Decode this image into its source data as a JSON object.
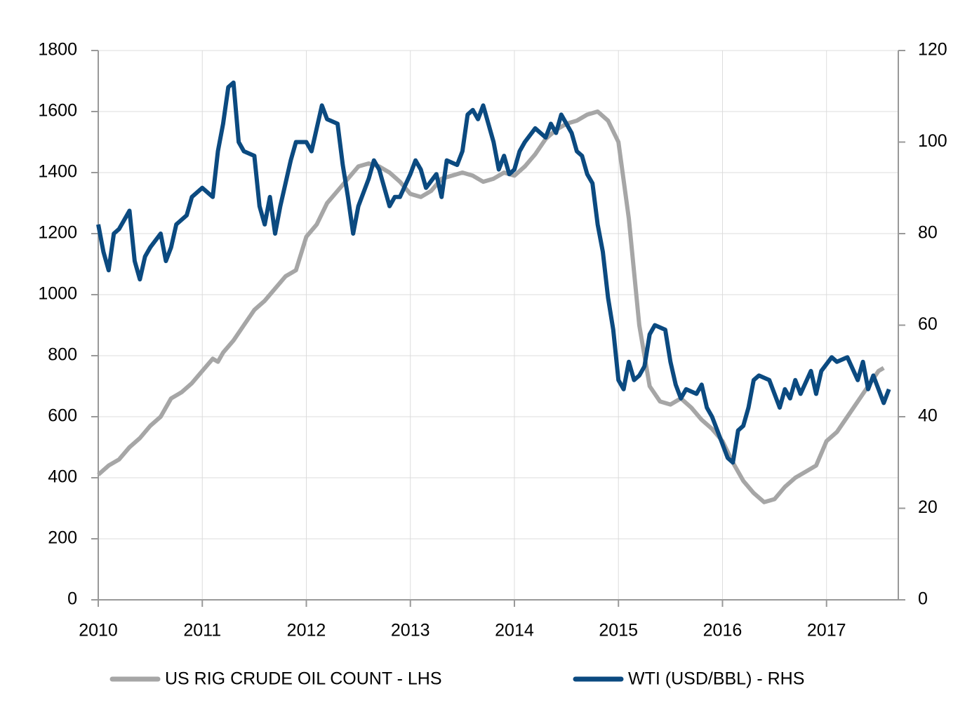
{
  "chart_data": {
    "type": "line",
    "xlim": [
      2010,
      2017.69
    ],
    "xticks": [
      2010,
      2011,
      2012,
      2013,
      2014,
      2015,
      2016,
      2017
    ],
    "ylim": [
      0,
      1800
    ],
    "yticks": [
      0,
      200,
      400,
      600,
      800,
      1000,
      1200,
      1400,
      1600,
      1800
    ],
    "y2lim": [
      0,
      120
    ],
    "y2ticks": [
      0,
      20,
      40,
      60,
      80,
      100,
      120
    ],
    "grid": true,
    "legend": "bottom",
    "series": [
      {
        "name": "US RIG CRUDE OIL COUNT - LHS",
        "color": "#a6a6a6",
        "axis": "y",
        "x": [
          2010.0,
          2010.1,
          2010.2,
          2010.3,
          2010.4,
          2010.5,
          2010.6,
          2010.7,
          2010.8,
          2010.9,
          2011.0,
          2011.1,
          2011.15,
          2011.2,
          2011.3,
          2011.4,
          2011.5,
          2011.6,
          2011.7,
          2011.8,
          2011.9,
          2012.0,
          2012.1,
          2012.2,
          2012.3,
          2012.4,
          2012.5,
          2012.6,
          2012.7,
          2012.8,
          2012.9,
          2013.0,
          2013.1,
          2013.2,
          2013.3,
          2013.4,
          2013.5,
          2013.6,
          2013.7,
          2013.8,
          2013.9,
          2014.0,
          2014.1,
          2014.2,
          2014.3,
          2014.4,
          2014.5,
          2014.6,
          2014.7,
          2014.8,
          2014.9,
          2015.0,
          2015.1,
          2015.2,
          2015.3,
          2015.4,
          2015.5,
          2015.6,
          2015.7,
          2015.8,
          2015.9,
          2016.0,
          2016.1,
          2016.2,
          2016.3,
          2016.4,
          2016.5,
          2016.6,
          2016.7,
          2016.8,
          2016.9,
          2017.0,
          2017.1,
          2017.2,
          2017.3,
          2017.4,
          2017.5,
          2017.55
        ],
        "values": [
          410,
          440,
          460,
          500,
          530,
          570,
          600,
          660,
          680,
          710,
          750,
          790,
          780,
          810,
          850,
          900,
          950,
          980,
          1020,
          1060,
          1080,
          1190,
          1230,
          1300,
          1340,
          1380,
          1420,
          1430,
          1420,
          1400,
          1370,
          1330,
          1320,
          1340,
          1380,
          1390,
          1400,
          1390,
          1370,
          1380,
          1400,
          1390,
          1420,
          1460,
          1510,
          1540,
          1560,
          1570,
          1590,
          1600,
          1570,
          1500,
          1250,
          900,
          700,
          650,
          640,
          660,
          630,
          590,
          560,
          520,
          450,
          390,
          350,
          320,
          330,
          370,
          400,
          420,
          440,
          520,
          550,
          600,
          650,
          700,
          750,
          760
        ]
      },
      {
        "name": "WTI (USD/BBL) - RHS",
        "color": "#0b4a80",
        "axis": "y2",
        "x": [
          2010.0,
          2010.05,
          2010.1,
          2010.15,
          2010.2,
          2010.25,
          2010.3,
          2010.35,
          2010.4,
          2010.45,
          2010.5,
          2010.6,
          2010.65,
          2010.7,
          2010.75,
          2010.85,
          2010.9,
          2011.0,
          2011.1,
          2011.15,
          2011.2,
          2011.25,
          2011.3,
          2011.35,
          2011.4,
          2011.5,
          2011.55,
          2011.6,
          2011.65,
          2011.7,
          2011.75,
          2011.85,
          2011.9,
          2012.0,
          2012.05,
          2012.1,
          2012.15,
          2012.2,
          2012.3,
          2012.35,
          2012.4,
          2012.45,
          2012.5,
          2012.6,
          2012.65,
          2012.7,
          2012.75,
          2012.8,
          2012.85,
          2012.9,
          2013.0,
          2013.05,
          2013.1,
          2013.15,
          2013.25,
          2013.3,
          2013.35,
          2013.45,
          2013.5,
          2013.55,
          2013.6,
          2013.65,
          2013.7,
          2013.75,
          2013.8,
          2013.85,
          2013.9,
          2013.95,
          2014.0,
          2014.05,
          2014.1,
          2014.2,
          2014.3,
          2014.35,
          2014.4,
          2014.45,
          2014.5,
          2014.55,
          2014.6,
          2014.65,
          2014.7,
          2014.75,
          2014.8,
          2014.85,
          2014.9,
          2014.95,
          2015.0,
          2015.05,
          2015.1,
          2015.15,
          2015.2,
          2015.25,
          2015.3,
          2015.35,
          2015.45,
          2015.5,
          2015.55,
          2015.6,
          2015.65,
          2015.75,
          2015.8,
          2015.85,
          2015.9,
          2015.95,
          2016.0,
          2016.05,
          2016.1,
          2016.15,
          2016.2,
          2016.25,
          2016.3,
          2016.35,
          2016.45,
          2016.5,
          2016.55,
          2016.6,
          2016.65,
          2016.7,
          2016.75,
          2016.85,
          2016.9,
          2016.95,
          2017.05,
          2017.1,
          2017.2,
          2017.3,
          2017.35,
          2017.4,
          2017.45,
          2017.5,
          2017.55,
          2017.6
        ],
        "values": [
          82,
          76,
          72,
          80,
          81,
          83,
          85,
          74,
          70,
          75,
          77,
          80,
          74,
          77,
          82,
          84,
          88,
          90,
          88,
          98,
          104,
          112,
          113,
          100,
          98,
          97,
          86,
          82,
          88,
          80,
          86,
          96,
          100,
          100,
          98,
          103,
          108,
          105,
          104,
          95,
          88,
          80,
          86,
          92,
          96,
          94,
          90,
          86,
          88,
          88,
          93,
          96,
          94,
          90,
          93,
          88,
          96,
          95,
          98,
          106,
          107,
          105,
          108,
          104,
          100,
          94,
          97,
          93,
          94,
          98,
          100,
          103,
          101,
          104,
          102,
          106,
          104,
          102,
          98,
          97,
          93,
          91,
          82,
          76,
          66,
          59,
          48,
          46,
          52,
          48,
          49,
          51,
          58,
          60,
          59,
          52,
          47,
          44,
          46,
          45,
          47,
          42,
          40,
          37,
          34,
          31,
          30,
          37,
          38,
          42,
          48,
          49,
          48,
          45,
          42,
          46,
          44,
          48,
          45,
          50,
          45,
          50,
          53,
          52,
          53,
          48,
          52,
          46,
          49,
          46,
          43,
          46
        ]
      }
    ]
  }
}
